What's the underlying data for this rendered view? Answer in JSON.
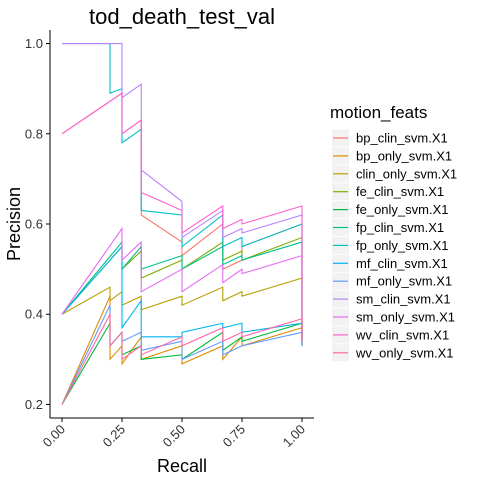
{
  "chart_data": {
    "type": "line",
    "title": "tod_death_test_val",
    "xlabel": "Recall",
    "ylabel": "Precision",
    "xlim": [
      -0.05,
      1.05
    ],
    "ylim": [
      0.17,
      1.03
    ],
    "x_ticks": [
      0.0,
      0.25,
      0.5,
      0.75,
      1.0
    ],
    "x_tick_labels": [
      "0.00",
      "0.25",
      "0.50",
      "0.75",
      "1.00"
    ],
    "y_ticks": [
      0.2,
      0.4,
      0.6,
      0.8,
      1.0
    ],
    "y_tick_labels": [
      "0.2",
      "0.4",
      "0.6",
      "0.8",
      "1.0"
    ],
    "grid": false,
    "legend": {
      "title": "motion_feats",
      "placement": "right"
    },
    "series": [
      {
        "name": "bp_clin_svm.X1",
        "color": "#F8766D",
        "points": [
          [
            0,
            0.8
          ],
          [
            0.25,
            0.89
          ],
          [
            0.25,
            0.8
          ],
          [
            0.33,
            0.83
          ],
          [
            0.33,
            0.62
          ],
          [
            0.5,
            0.56
          ],
          [
            0.5,
            0.53
          ],
          [
            0.67,
            0.6
          ],
          [
            0.67,
            0.5
          ],
          [
            0.75,
            0.52
          ],
          [
            0.75,
            0.55
          ],
          [
            1,
            0.6
          ],
          [
            1,
            0.35
          ]
        ]
      },
      {
        "name": "bp_only_svm.X1",
        "color": "#DE8C00",
        "points": [
          [
            0,
            0.2
          ],
          [
            0.2,
            0.44
          ],
          [
            0.2,
            0.3
          ],
          [
            0.25,
            0.33
          ],
          [
            0.25,
            0.29
          ],
          [
            0.33,
            0.35
          ],
          [
            0.33,
            0.3
          ],
          [
            0.5,
            0.33
          ],
          [
            0.5,
            0.29
          ],
          [
            0.67,
            0.33
          ],
          [
            0.67,
            0.3
          ],
          [
            0.75,
            0.35
          ],
          [
            0.75,
            0.33
          ],
          [
            1,
            0.37
          ],
          [
            1,
            0.33
          ]
        ]
      },
      {
        "name": "clin_only_svm.X1",
        "color": "#B79F00",
        "points": [
          [
            0,
            0.4
          ],
          [
            0.2,
            0.46
          ],
          [
            0.2,
            0.43
          ],
          [
            0.25,
            0.45
          ],
          [
            0.25,
            0.42
          ],
          [
            0.33,
            0.44
          ],
          [
            0.33,
            0.41
          ],
          [
            0.5,
            0.44
          ],
          [
            0.5,
            0.42
          ],
          [
            0.67,
            0.46
          ],
          [
            0.67,
            0.43
          ],
          [
            0.75,
            0.45
          ],
          [
            0.75,
            0.44
          ],
          [
            1,
            0.48
          ],
          [
            1,
            0.33
          ]
        ]
      },
      {
        "name": "fe_clin_svm.X1",
        "color": "#7CAE00",
        "points": [
          [
            0,
            0.4
          ],
          [
            0.25,
            0.55
          ],
          [
            0.25,
            0.5
          ],
          [
            0.33,
            0.54
          ],
          [
            0.33,
            0.48
          ],
          [
            0.5,
            0.52
          ],
          [
            0.5,
            0.5
          ],
          [
            0.67,
            0.56
          ],
          [
            0.67,
            0.52
          ],
          [
            0.75,
            0.54
          ],
          [
            0.75,
            0.52
          ],
          [
            1,
            0.57
          ],
          [
            1,
            0.33
          ]
        ]
      },
      {
        "name": "fe_only_svm.X1",
        "color": "#00BA38",
        "points": [
          [
            0,
            0.2
          ],
          [
            0.2,
            0.38
          ],
          [
            0.2,
            0.33
          ],
          [
            0.25,
            0.36
          ],
          [
            0.25,
            0.31
          ],
          [
            0.33,
            0.33
          ],
          [
            0.33,
            0.3
          ],
          [
            0.5,
            0.31
          ],
          [
            0.5,
            0.3
          ],
          [
            0.67,
            0.36
          ],
          [
            0.67,
            0.32
          ],
          [
            0.75,
            0.35
          ],
          [
            0.75,
            0.34
          ],
          [
            1,
            0.38
          ],
          [
            1,
            0.33
          ]
        ]
      },
      {
        "name": "fp_clin_svm.X1",
        "color": "#00C08B",
        "points": [
          [
            0,
            0.4
          ],
          [
            0.25,
            0.56
          ],
          [
            0.25,
            0.5
          ],
          [
            0.33,
            0.55
          ],
          [
            0.33,
            0.5
          ],
          [
            0.5,
            0.53
          ],
          [
            0.5,
            0.5
          ],
          [
            0.67,
            0.55
          ],
          [
            0.67,
            0.51
          ],
          [
            0.75,
            0.53
          ],
          [
            0.75,
            0.52
          ],
          [
            1,
            0.56
          ],
          [
            1,
            0.34
          ]
        ]
      },
      {
        "name": "fp_only_svm.X1",
        "color": "#00BFC4",
        "points": [
          [
            0,
            1
          ],
          [
            0.2,
            1
          ],
          [
            0.2,
            0.89
          ],
          [
            0.25,
            0.9
          ],
          [
            0.25,
            0.78
          ],
          [
            0.33,
            0.81
          ],
          [
            0.33,
            0.63
          ],
          [
            0.5,
            0.62
          ],
          [
            0.5,
            0.55
          ],
          [
            0.67,
            0.62
          ],
          [
            0.67,
            0.55
          ],
          [
            0.75,
            0.57
          ],
          [
            0.75,
            0.55
          ],
          [
            1,
            0.6
          ],
          [
            1,
            0.34
          ]
        ]
      },
      {
        "name": "mf_clin_svm.X1",
        "color": "#00B4F0",
        "points": [
          [
            0,
            0.4
          ],
          [
            0.25,
            0.55
          ],
          [
            0.25,
            0.37
          ],
          [
            0.33,
            0.43
          ],
          [
            0.33,
            0.35
          ],
          [
            0.5,
            0.35
          ],
          [
            0.5,
            0.36
          ],
          [
            0.67,
            0.38
          ],
          [
            0.67,
            0.37
          ],
          [
            0.75,
            0.38
          ],
          [
            0.75,
            0.36
          ],
          [
            1,
            0.38
          ],
          [
            1,
            0.33
          ]
        ]
      },
      {
        "name": "mf_only_svm.X1",
        "color": "#619CFF",
        "points": [
          [
            0,
            0.2
          ],
          [
            0.2,
            0.42
          ],
          [
            0.2,
            0.33
          ],
          [
            0.25,
            0.36
          ],
          [
            0.25,
            0.34
          ],
          [
            0.33,
            0.36
          ],
          [
            0.33,
            0.32
          ],
          [
            0.5,
            0.34
          ],
          [
            0.5,
            0.3
          ],
          [
            0.67,
            0.34
          ],
          [
            0.67,
            0.31
          ],
          [
            0.75,
            0.33
          ],
          [
            0.75,
            0.33
          ],
          [
            1,
            0.36
          ],
          [
            1,
            0.33
          ]
        ]
      },
      {
        "name": "sm_clin_svm.X1",
        "color": "#B983FF",
        "points": [
          [
            0,
            1
          ],
          [
            0.25,
            1
          ],
          [
            0.25,
            0.88
          ],
          [
            0.33,
            0.91
          ],
          [
            0.33,
            0.72
          ],
          [
            0.5,
            0.65
          ],
          [
            0.5,
            0.57
          ],
          [
            0.67,
            0.63
          ],
          [
            0.67,
            0.57
          ],
          [
            0.75,
            0.59
          ],
          [
            0.75,
            0.58
          ],
          [
            1,
            0.62
          ],
          [
            1,
            0.36
          ]
        ]
      },
      {
        "name": "sm_only_svm.X1",
        "color": "#E76BF3",
        "points": [
          [
            0,
            0.4
          ],
          [
            0.25,
            0.59
          ],
          [
            0.25,
            0.52
          ],
          [
            0.33,
            0.56
          ],
          [
            0.33,
            0.45
          ],
          [
            0.5,
            0.5
          ],
          [
            0.5,
            0.45
          ],
          [
            0.67,
            0.51
          ],
          [
            0.67,
            0.47
          ],
          [
            0.75,
            0.5
          ],
          [
            0.75,
            0.49
          ],
          [
            1,
            0.53
          ],
          [
            1,
            0.35
          ]
        ]
      },
      {
        "name": "wv_clin_svm.X1",
        "color": "#FD61D1",
        "points": [
          [
            0,
            0.8
          ],
          [
            0.25,
            0.89
          ],
          [
            0.25,
            0.8
          ],
          [
            0.33,
            0.83
          ],
          [
            0.33,
            0.67
          ],
          [
            0.5,
            0.63
          ],
          [
            0.5,
            0.58
          ],
          [
            0.67,
            0.64
          ],
          [
            0.67,
            0.59
          ],
          [
            0.75,
            0.61
          ],
          [
            0.75,
            0.6
          ],
          [
            1,
            0.64
          ],
          [
            1,
            0.34
          ]
        ]
      },
      {
        "name": "wv_only_svm.X1",
        "color": "#FF67A4",
        "points": [
          [
            0,
            0.2
          ],
          [
            0.2,
            0.4
          ],
          [
            0.2,
            0.33
          ],
          [
            0.25,
            0.36
          ],
          [
            0.25,
            0.3
          ],
          [
            0.33,
            0.33
          ],
          [
            0.33,
            0.31
          ],
          [
            0.5,
            0.35
          ],
          [
            0.5,
            0.33
          ],
          [
            0.67,
            0.37
          ],
          [
            0.67,
            0.34
          ],
          [
            0.75,
            0.36
          ],
          [
            0.75,
            0.35
          ],
          [
            1,
            0.39
          ],
          [
            1,
            0.34
          ]
        ]
      }
    ]
  }
}
